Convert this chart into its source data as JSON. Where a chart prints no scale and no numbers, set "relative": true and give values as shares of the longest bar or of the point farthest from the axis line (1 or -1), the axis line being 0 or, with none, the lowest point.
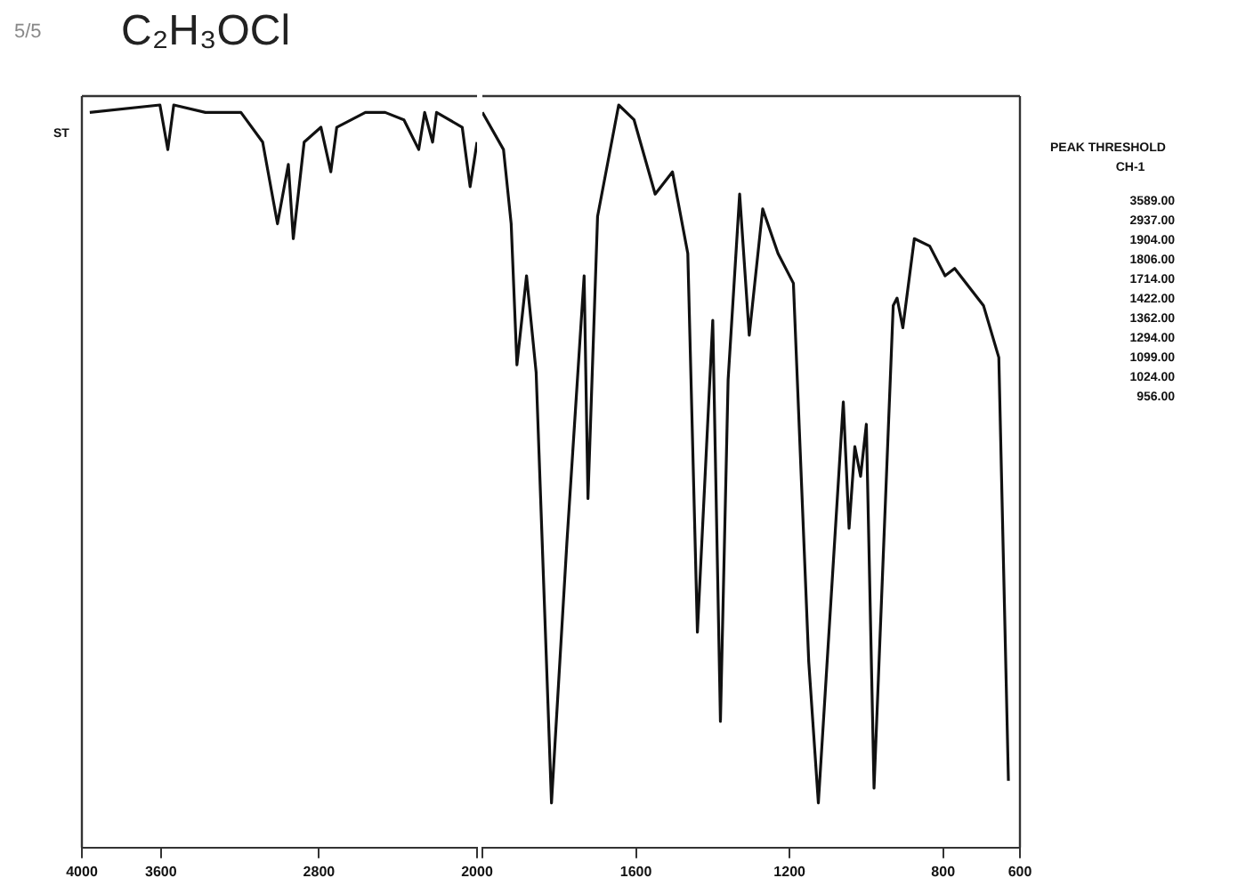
{
  "chart_data": [
    {
      "type": "line",
      "title": "C₂H₃OCl",
      "annotations": [
        "5/5",
        "ST",
        "PEAK THRESHOLD",
        "CH-1",
        "3589.00",
        "2937.00",
        "1904.00",
        "1806.00",
        "1714.00",
        "1422.00",
        "1362.00",
        "1294.00",
        "1099.00",
        "1024.00",
        "956.00"
      ],
      "relative": true,
      "tick_labels": "x",
      "legend": false,
      "marker": "none",
      "line_style": "solid",
      "xlim": [
        4000,
        2000
      ],
      "xticks": [
        4000,
        3600,
        2800,
        2000
      ],
      "series": [
        {
          "color": "#111111",
          "x": [
            3960,
            3605,
            3565,
            3535,
            3375,
            3295,
            3195,
            3085,
            3010,
            2955,
            2930,
            2875,
            2790,
            2740,
            2710,
            2565,
            2465,
            2370,
            2295,
            2265,
            2225,
            2205,
            2075,
            2035,
            2000
          ],
          "values": [
            0.99,
            1.0,
            0.94,
            1.0,
            0.99,
            0.99,
            0.99,
            0.95,
            0.84,
            0.92,
            0.82,
            0.95,
            0.97,
            0.91,
            0.97,
            0.99,
            0.99,
            0.98,
            0.94,
            0.99,
            0.95,
            0.99,
            0.97,
            0.89,
            0.95
          ]
        }
      ]
    },
    {
      "type": "line",
      "relative": true,
      "tick_labels": "x",
      "legend": false,
      "marker": "none",
      "line_style": "solid",
      "xlim": [
        2000,
        600
      ],
      "xticks": [
        {
          "value": 2000,
          "label": null
        },
        1600,
        1200,
        800,
        600
      ],
      "series": [
        {
          "color": "#111111",
          "x": [
            2000,
            1945,
            1925,
            1910,
            1885,
            1860,
            1820,
            1780,
            1735,
            1725,
            1700,
            1645,
            1605,
            1550,
            1505,
            1465,
            1440,
            1400,
            1380,
            1360,
            1330,
            1305,
            1270,
            1230,
            1190,
            1150,
            1125,
            1060,
            1045,
            1030,
            1015,
            1000,
            980,
            930,
            920,
            905,
            875,
            835,
            795,
            770,
            695,
            655,
            630
          ],
          "values": [
            0.99,
            0.94,
            0.84,
            0.65,
            0.77,
            0.64,
            0.06,
            0.41,
            0.77,
            0.47,
            0.85,
            1.0,
            0.98,
            0.88,
            0.91,
            0.8,
            0.29,
            0.71,
            0.17,
            0.63,
            0.88,
            0.69,
            0.86,
            0.8,
            0.76,
            0.25,
            0.06,
            0.6,
            0.43,
            0.54,
            0.5,
            0.57,
            0.08,
            0.73,
            0.74,
            0.7,
            0.82,
            0.81,
            0.77,
            0.78,
            0.73,
            0.66,
            0.09
          ]
        }
      ]
    }
  ]
}
